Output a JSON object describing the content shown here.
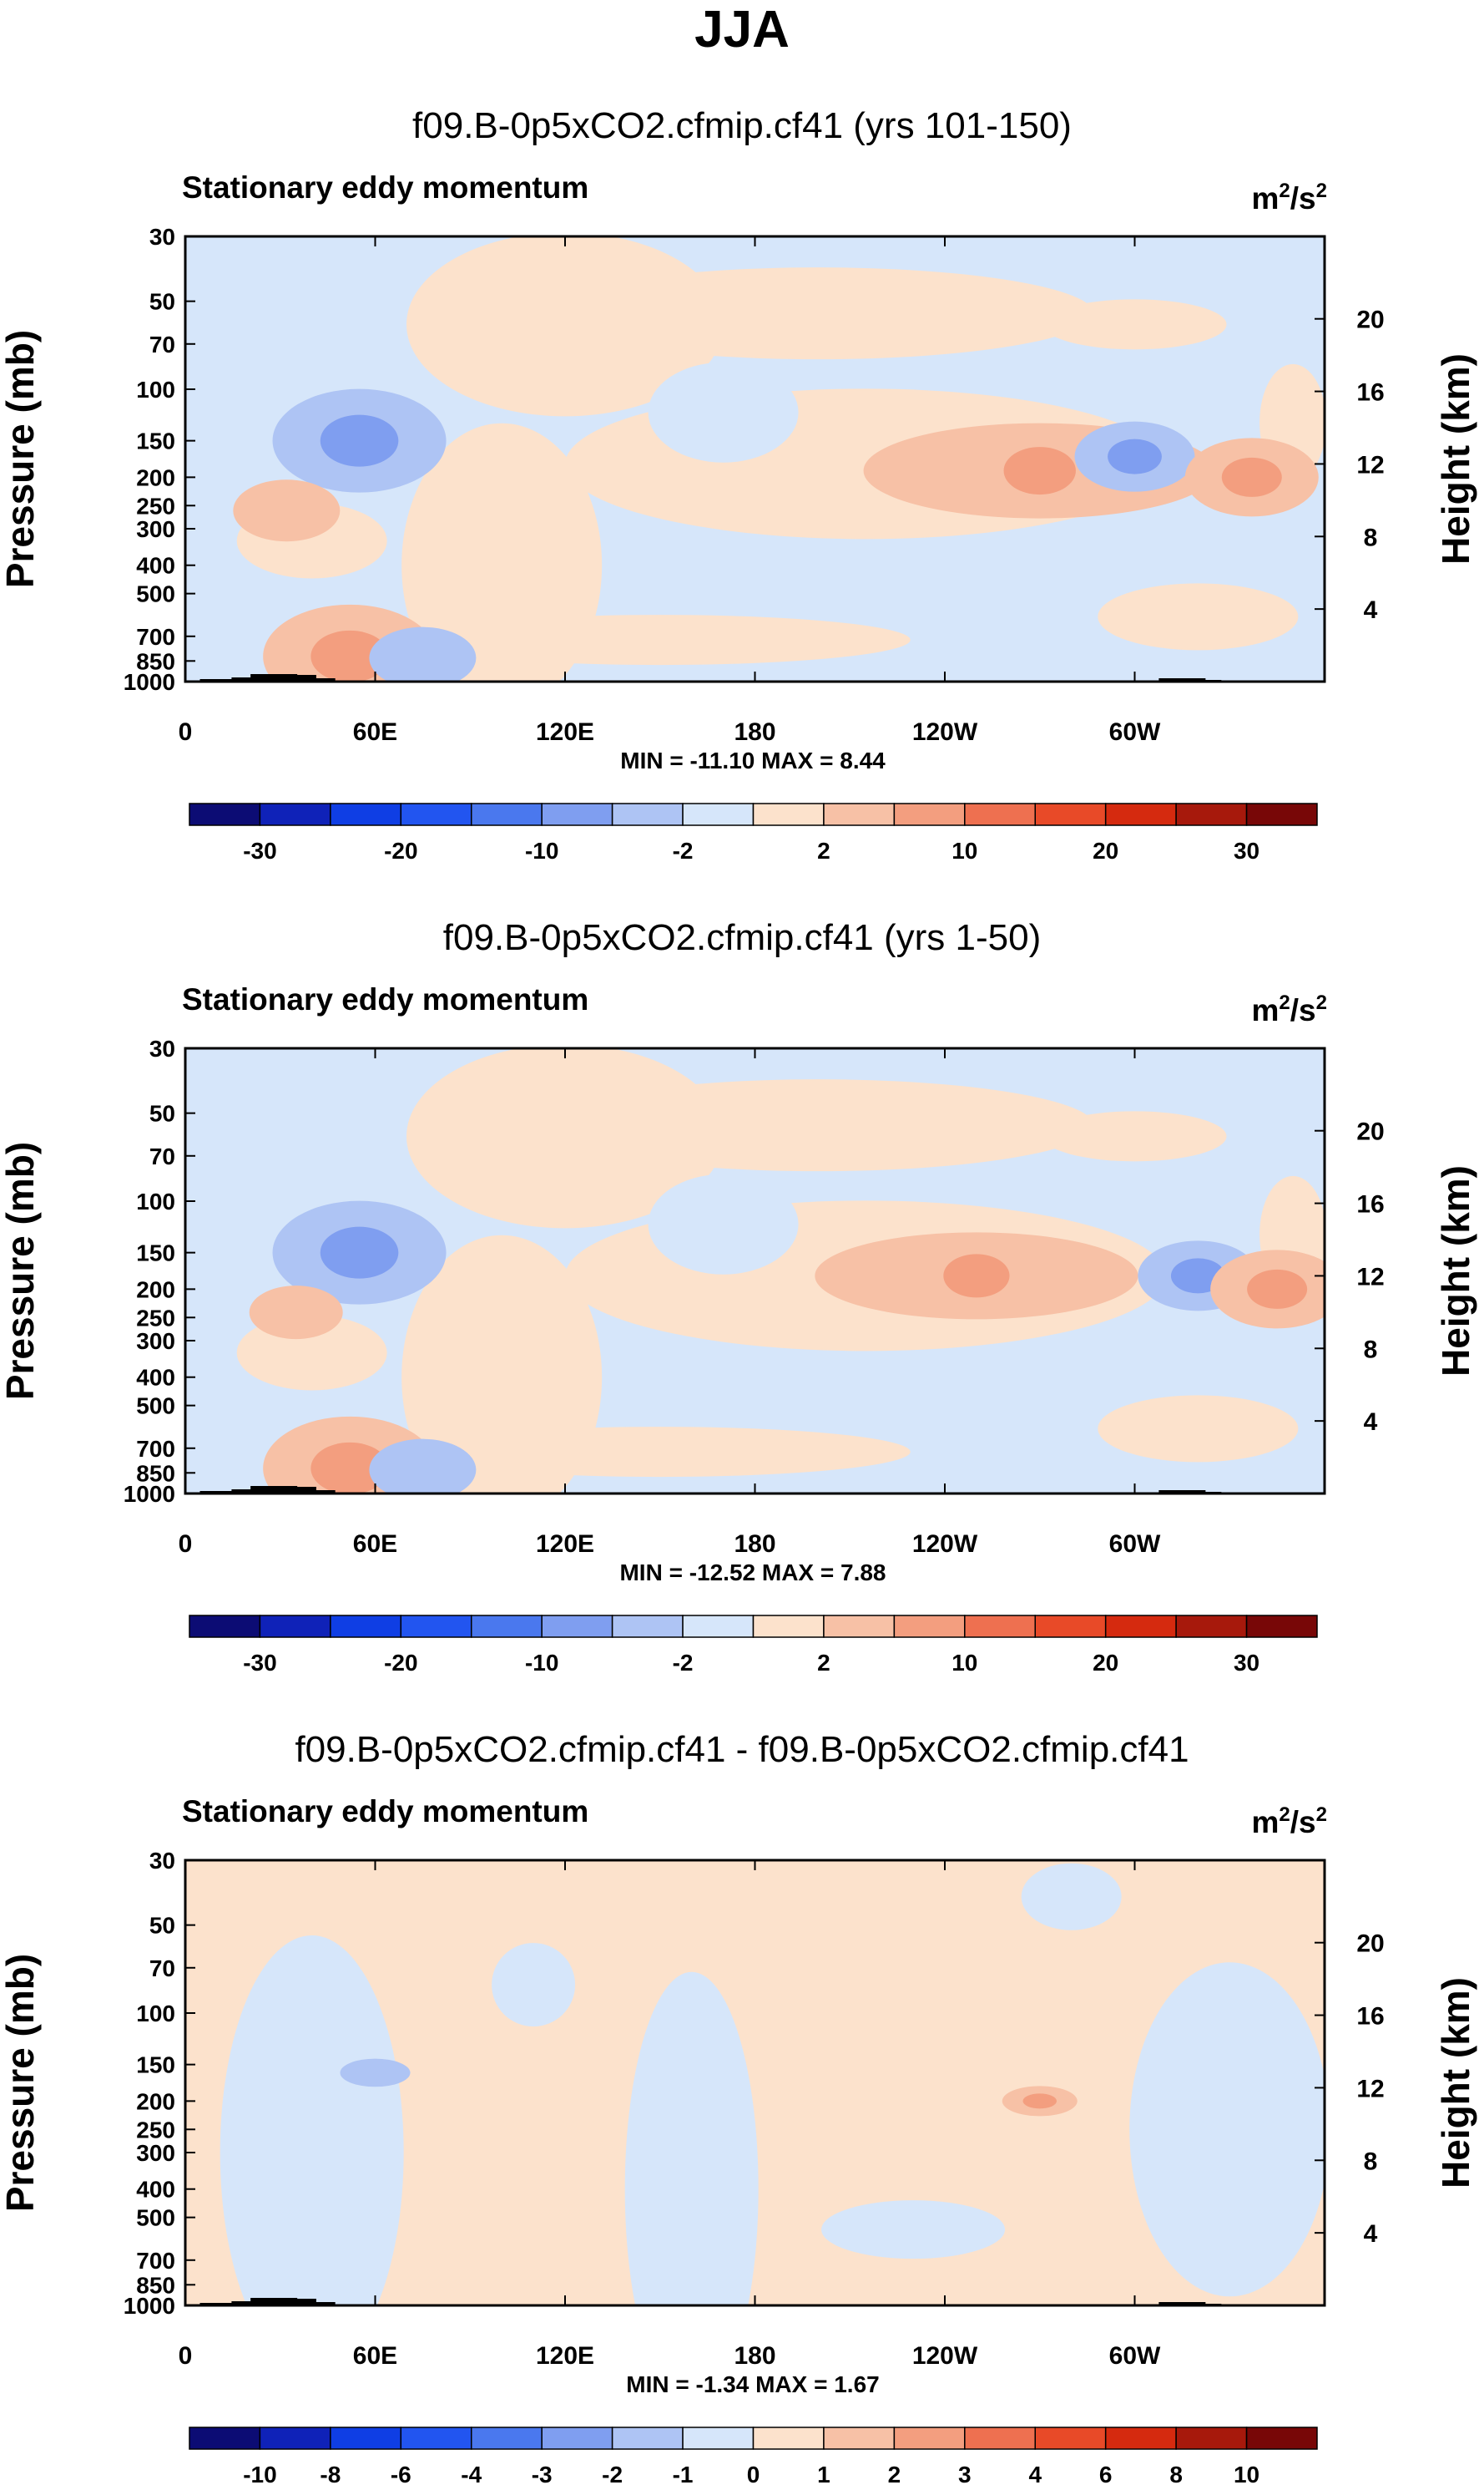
{
  "figure_title": "JJA",
  "chart_data": [
    {
      "type": "heatmap",
      "title": "f09.B-0p5xCO2.cfmip.cf41 (yrs 101-150)",
      "left_label": "Stationary eddy momentum",
      "units": {
        "base": "m",
        "sup1": "2",
        "mid": "/s",
        "sup2": "2"
      },
      "ylabel": "Pressure (mb)",
      "ylabel_right": "Height (km)",
      "x_ticks": [
        "0",
        "60E",
        "120E",
        "180",
        "120W",
        "60W"
      ],
      "y_ticks": [
        "30",
        "50",
        "70",
        "100",
        "150",
        "200",
        "250",
        "300",
        "400",
        "500",
        "700",
        "850",
        "1000"
      ],
      "height_ticks": [
        "20",
        "16",
        "12",
        "8",
        "4"
      ],
      "xlim": [
        0,
        360
      ],
      "ylim_mb": [
        1000,
        30
      ],
      "stats": "MIN = -11.10   MAX =  8.44",
      "colorbar_labels": [
        "-30",
        "-20",
        "-10",
        "-2",
        "2",
        "10",
        "20",
        "30"
      ],
      "features": [
        {
          "name": "negative-core-60E",
          "lon": 55,
          "p": 150,
          "value": -8
        },
        {
          "name": "positive-jet-central",
          "lon": 270,
          "p": 190,
          "value": 7
        },
        {
          "name": "negative-core-80W",
          "lon": 300,
          "p": 170,
          "value": -4
        },
        {
          "name": "positive-core-60W",
          "lon": 337,
          "p": 200,
          "value": 5
        },
        {
          "name": "positive-core-30E",
          "lon": 32,
          "p": 260,
          "value": 3
        },
        {
          "name": "positive-surface-50E",
          "lon": 52,
          "p": 820,
          "value": 8
        },
        {
          "name": "negative-surface-70E",
          "lon": 75,
          "p": 830,
          "value": -3
        }
      ]
    },
    {
      "type": "heatmap",
      "title": "f09.B-0p5xCO2.cfmip.cf41 (yrs 1-50)",
      "left_label": "Stationary eddy momentum",
      "units": {
        "base": "m",
        "sup1": "2",
        "mid": "/s",
        "sup2": "2"
      },
      "ylabel": "Pressure (mb)",
      "ylabel_right": "Height (km)",
      "x_ticks": [
        "0",
        "60E",
        "120E",
        "180",
        "120W",
        "60W"
      ],
      "y_ticks": [
        "30",
        "50",
        "70",
        "100",
        "150",
        "200",
        "250",
        "300",
        "400",
        "500",
        "700",
        "850",
        "1000"
      ],
      "height_ticks": [
        "20",
        "16",
        "12",
        "8",
        "4"
      ],
      "xlim": [
        0,
        360
      ],
      "ylim_mb": [
        1000,
        30
      ],
      "stats": "MIN = -12.52   MAX =  7.88",
      "colorbar_labels": [
        "-30",
        "-20",
        "-10",
        "-2",
        "2",
        "10",
        "20",
        "30"
      ],
      "features": [
        {
          "name": "negative-core-60E",
          "lon": 55,
          "p": 150,
          "value": -8
        },
        {
          "name": "positive-jet-central",
          "lon": 250,
          "p": 180,
          "value": 6
        },
        {
          "name": "negative-core-80W",
          "lon": 320,
          "p": 180,
          "value": -4
        },
        {
          "name": "positive-core-60W",
          "lon": 345,
          "p": 200,
          "value": 5
        },
        {
          "name": "positive-core-30E",
          "lon": 35,
          "p": 240,
          "value": 2
        },
        {
          "name": "positive-surface-50E",
          "lon": 52,
          "p": 820,
          "value": 8
        },
        {
          "name": "negative-surface-70E",
          "lon": 75,
          "p": 830,
          "value": -3
        }
      ]
    },
    {
      "type": "heatmap",
      "title": "f09.B-0p5xCO2.cfmip.cf41 - f09.B-0p5xCO2.cfmip.cf41",
      "left_label": "Stationary eddy momentum",
      "units": {
        "base": "m",
        "sup1": "2",
        "mid": "/s",
        "sup2": "2"
      },
      "ylabel": "Pressure (mb)",
      "ylabel_right": "Height (km)",
      "x_ticks": [
        "0",
        "60E",
        "120E",
        "180",
        "120W",
        "60W"
      ],
      "y_ticks": [
        "30",
        "50",
        "70",
        "100",
        "150",
        "200",
        "250",
        "300",
        "400",
        "500",
        "700",
        "850",
        "1000"
      ],
      "height_ticks": [
        "20",
        "16",
        "12",
        "8",
        "4"
      ],
      "xlim": [
        0,
        360
      ],
      "ylim_mb": [
        1000,
        30
      ],
      "stats": "MIN = -1.34   MAX =  1.67",
      "colorbar_labels": [
        "-10",
        "-8",
        "-6",
        "-4",
        "-3",
        "-2",
        "-1",
        "0",
        "1",
        "2",
        "3",
        "4",
        "6",
        "8",
        "10"
      ],
      "features": [
        {
          "name": "positive-core-120W",
          "lon": 270,
          "p": 200,
          "value": 1.5
        },
        {
          "name": "negative-spot-60E",
          "lon": 60,
          "p": 160,
          "value": -1.2
        }
      ]
    }
  ],
  "colors": {
    "bar16": [
      "#0c0c74",
      "#0f22b8",
      "#0f3ee4",
      "#2255f0",
      "#4a78ee",
      "#7f9ef0",
      "#aec4f4",
      "#d6e6fa",
      "#fce2cc",
      "#f7c1a6",
      "#f39e7f",
      "#ee7050",
      "#e84a28",
      "#d52a0f",
      "#a7190c",
      "#780707"
    ],
    "bar16_diff": [
      "#0c0c74",
      "#0f22b8",
      "#0f3ee4",
      "#2255f0",
      "#4a78ee",
      "#7f9ef0",
      "#aec4f4",
      "#d6e6fa",
      "#fce2cc",
      "#f7c1a6",
      "#f39e7f",
      "#ee7050",
      "#e84a28",
      "#d52a0f",
      "#a7190c",
      "#780707"
    ],
    "fill_blue": "#d6e6fa",
    "fill_tan": "#fce2cc",
    "fill_mid_blue": "#aec4f4",
    "fill_core_blue": "#7f9ef0",
    "fill_mid_red": "#f7c1a6",
    "fill_core_red": "#f39e7f",
    "topography": "#000000"
  }
}
